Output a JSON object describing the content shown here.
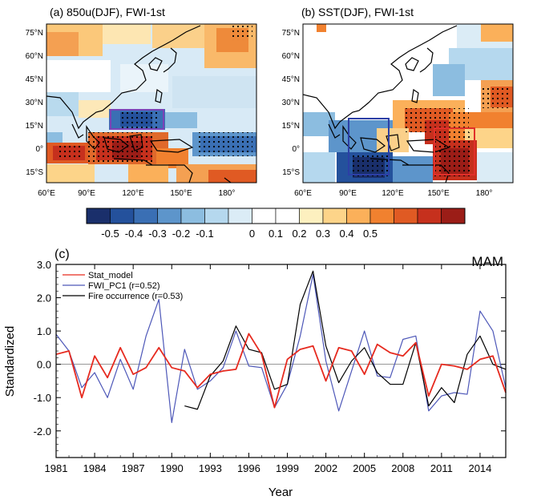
{
  "panel_a": {
    "title": "(a) 850u(DJF), FWI-1st",
    "lat_labels": [
      "75°N",
      "60°N",
      "45°N",
      "30°N",
      "15°N",
      "0°",
      "15°S"
    ],
    "lon_labels": [
      "60°E",
      "90°E",
      "120°E",
      "150°E",
      "180°"
    ]
  },
  "panel_b": {
    "title": "(b) SST(DJF), FWI-1st",
    "lat_labels": [
      "75°N",
      "60°N",
      "45°N",
      "30°N",
      "15°N",
      "0°",
      "15°S"
    ],
    "lon_labels": [
      "60°E",
      "90°E",
      "120°E",
      "150°E",
      "180°"
    ]
  },
  "colorbar": {
    "labels": [
      "-0.5",
      "-0.4",
      "-0.3",
      "-0.2",
      "-0.1",
      "0",
      "0.1",
      "0.2",
      "0.3",
      "0.4",
      "0.5"
    ],
    "colors": [
      "#1a2f6b",
      "#24519c",
      "#3a6fb4",
      "#5d95cb",
      "#8cbde0",
      "#b5d8ee",
      "#dbecf6",
      "#ffffff",
      "#ffffff",
      "#fdf0bf",
      "#fdd489",
      "#fbb05a",
      "#f1812f",
      "#e05a23",
      "#c6301d",
      "#9b1d17"
    ]
  },
  "colors": {
    "stat_model": "#e62a1f",
    "fwi_pc1": "#4d57b8",
    "fire": "#000000",
    "box_purple": "#7b43b7",
    "box_blue": "#2c3fa6",
    "box_red": "#e0302a"
  },
  "chart_data": {
    "type": "line",
    "panel_label": "(c)",
    "title": "MAM",
    "xlabel": "Year",
    "ylabel": "Standardized",
    "xlim": [
      1981,
      2016
    ],
    "ylim": [
      -2.8,
      3.0
    ],
    "x_ticks": [
      1981,
      1984,
      1987,
      1990,
      1993,
      1996,
      1999,
      2002,
      2005,
      2008,
      2011,
      2014
    ],
    "y_ticks": [
      3.0,
      2.0,
      1.0,
      0.0,
      -1.0,
      -2.0
    ],
    "y_tick_labels": [
      "3.0",
      "2.0",
      "1.0",
      "0.0",
      "-1.0",
      "-2.0"
    ],
    "legend": [
      {
        "label": "Stat_model"
      },
      {
        "label": "FWI_PC1 (r=0.52)"
      },
      {
        "label": "Fire occurrence (r=0.53)"
      }
    ],
    "series": [
      {
        "name": "Stat_model",
        "x": [
          1981,
          1982,
          1983,
          1984,
          1985,
          1986,
          1987,
          1988,
          1989,
          1990,
          1991,
          1992,
          1993,
          1994,
          1995,
          1996,
          1997,
          1998,
          1999,
          2000,
          2001,
          2002,
          2003,
          2004,
          2005,
          2006,
          2007,
          2008,
          2009,
          2010,
          2011,
          2012,
          2013,
          2014,
          2015,
          2016
        ],
        "values": [
          0.3,
          0.4,
          -1.0,
          0.25,
          -0.4,
          0.5,
          -0.3,
          -0.1,
          0.5,
          -0.1,
          -0.2,
          -0.7,
          -0.3,
          -0.2,
          -0.15,
          0.92,
          0.3,
          -1.3,
          0.15,
          0.45,
          0.55,
          -0.5,
          0.5,
          0.4,
          -0.3,
          0.6,
          0.35,
          0.25,
          0.65,
          -0.95,
          0.0,
          -0.05,
          -0.15,
          0.15,
          0.25,
          -0.85
        ]
      },
      {
        "name": "FWI_PC1 (r=0.52)",
        "x": [
          1981,
          1982,
          1983,
          1984,
          1985,
          1986,
          1987,
          1988,
          1989,
          1990,
          1991,
          1992,
          1993,
          1994,
          1995,
          1996,
          1997,
          1998,
          1999,
          2000,
          2001,
          2002,
          2003,
          2004,
          2005,
          2006,
          2007,
          2008,
          2009,
          2010,
          2011,
          2012,
          2013,
          2014,
          2015,
          2016
        ],
        "values": [
          0.9,
          0.4,
          -0.7,
          -0.25,
          -1.0,
          0.15,
          -0.75,
          0.85,
          1.95,
          -1.75,
          0.45,
          -0.75,
          -0.5,
          -0.1,
          1.0,
          -0.05,
          -0.1,
          -1.3,
          -0.6,
          0.85,
          2.7,
          0.1,
          -1.4,
          -0.2,
          1.0,
          -0.35,
          -0.4,
          0.75,
          0.85,
          -1.4,
          -0.95,
          -0.85,
          -0.9,
          1.6,
          1.0,
          -0.7
        ]
      },
      {
        "name": "Fire occurrence (r=0.53)",
        "x": [
          1991,
          1992,
          1993,
          1994,
          1995,
          1996,
          1997,
          1998,
          1999,
          2000,
          2001,
          2002,
          2003,
          2004,
          2005,
          2006,
          2007,
          2008,
          2009,
          2010,
          2011,
          2012,
          2013,
          2014,
          2015,
          2016
        ],
        "values": [
          -1.25,
          -1.35,
          -0.35,
          0.1,
          1.15,
          0.45,
          0.35,
          -0.75,
          -0.6,
          1.8,
          2.8,
          0.55,
          -0.55,
          0.1,
          0.5,
          -0.25,
          -0.6,
          -0.6,
          0.65,
          -1.25,
          -0.7,
          -1.15,
          0.3,
          0.85,
          0.0,
          -0.15
        ]
      }
    ]
  }
}
